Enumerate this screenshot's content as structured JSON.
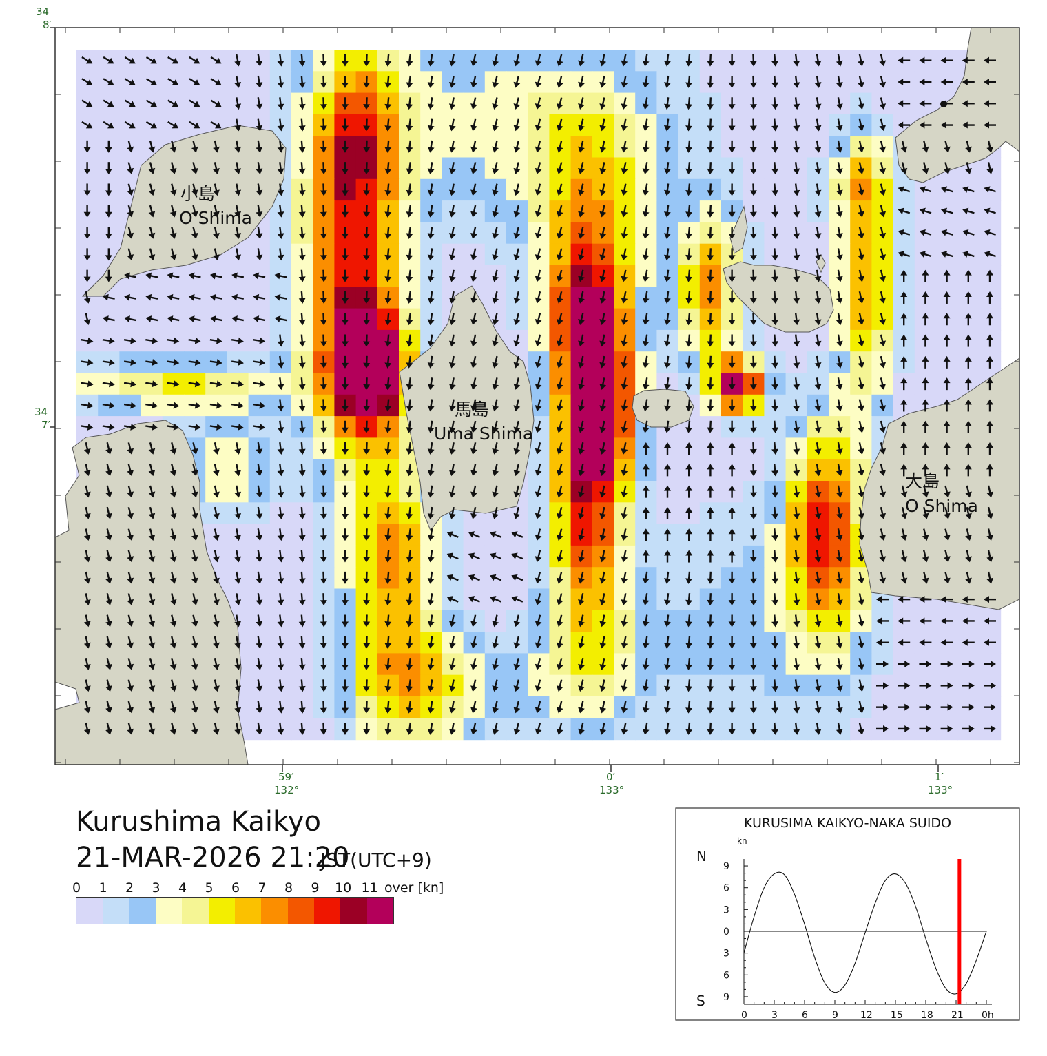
{
  "title": "Kurushima Kaikyo",
  "datetime": "21-MAR-2026 21:20",
  "timezone": "JST(UTC+9)",
  "legend": {
    "labels": [
      "0",
      "1",
      "2",
      "3",
      "4",
      "5",
      "6",
      "7",
      "8",
      "9",
      "10",
      "11",
      "over [kn]"
    ],
    "colors": [
      "#d8d8f8",
      "#c4def8",
      "#98c6f6",
      "#fdfdc4",
      "#f5f594",
      "#f3ee00",
      "#fbc100",
      "#fb8e00",
      "#f35700",
      "#ef1600",
      "#9b0025",
      "#b3005a"
    ]
  },
  "axes": {
    "lat_labels": [
      {
        "deg": "34",
        "min": "8′"
      },
      {
        "deg": "34",
        "min": "7′"
      }
    ],
    "lon_labels": [
      {
        "min": "59′",
        "deg": "132°"
      },
      {
        "min": "0′",
        "deg": "133°"
      },
      {
        "min": "1′",
        "deg": "133°"
      }
    ]
  },
  "islands": [
    {
      "name_ja": "小島",
      "name_en": "O Shima"
    },
    {
      "name_ja": "馬島",
      "name_en": "Uma Shima"
    },
    {
      "name_ja": "大島",
      "name_en": "O Shima"
    }
  ],
  "land_color": "#d6d6c6",
  "inset": {
    "title": "KURUSIMA KAIKYO-NAKA SUIDO",
    "unit": "kn",
    "north_label": "N",
    "south_label": "S",
    "y_ticks": [
      "9",
      "6",
      "3",
      "0",
      "3",
      "6",
      "9"
    ],
    "x_ticks": [
      "0",
      "3",
      "6",
      "9",
      "12",
      "15",
      "18",
      "21",
      "0h"
    ],
    "current_hour": 21.33,
    "current_marker_color": "#ff0000"
  },
  "chart_data": {
    "type": "line",
    "title": "KURUSIMA KAIKYO-NAKA SUIDO",
    "xlabel": "",
    "ylabel": "kn",
    "xlim": [
      0,
      24
    ],
    "ylim": [
      -10,
      10
    ],
    "series": [
      {
        "x": [
          0,
          1,
          2,
          3,
          4,
          5,
          6,
          7,
          8,
          9,
          10,
          11,
          12,
          13,
          14,
          15,
          16,
          17,
          18,
          19,
          20,
          21,
          22,
          23,
          24
        ],
        "values": [
          -3.0,
          2.0,
          6.0,
          7.9,
          7.8,
          5.1,
          1.0,
          -3.6,
          -7.1,
          -8.4,
          -7.4,
          -4.4,
          -0.2,
          3.9,
          7.0,
          7.9,
          6.6,
          3.4,
          -1.0,
          -5.1,
          -7.9,
          -8.6,
          -7.2,
          -4.0,
          0.0
        ]
      }
    ],
    "current_time_hour": 21.33
  }
}
